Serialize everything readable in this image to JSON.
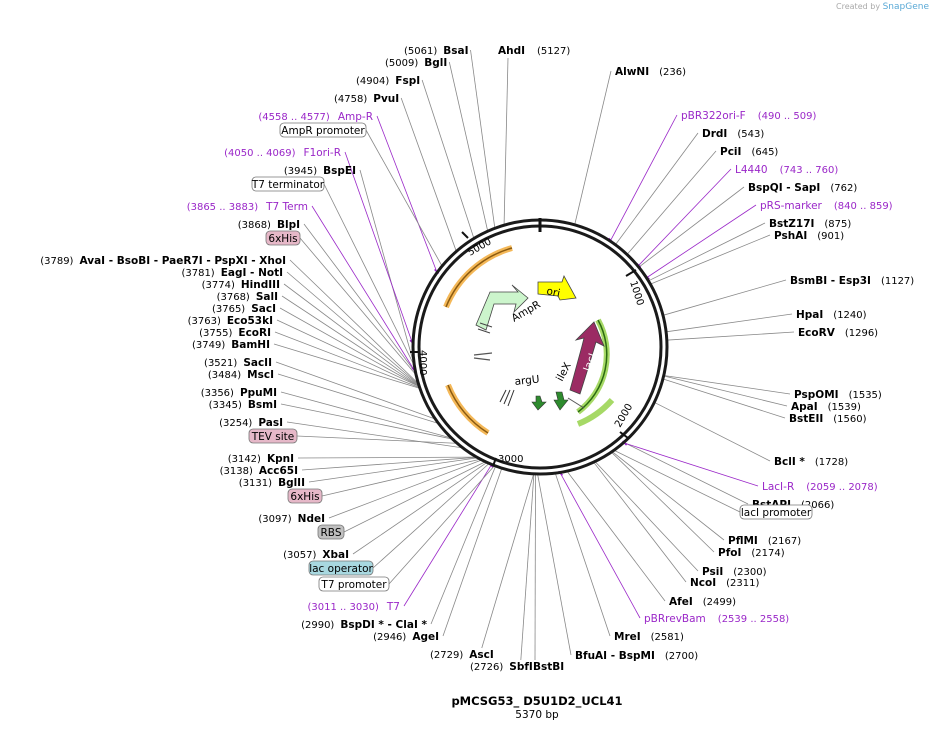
{
  "credit": {
    "prefix": "Created by",
    "brand": "SnapGene"
  },
  "plasmid": {
    "name": "pMCSG53_ D5U1D2_UCL41",
    "size": "5370 bp",
    "length": 5370
  },
  "ticks": [
    "1000",
    "2000",
    "3000",
    "4000",
    "5000"
  ],
  "features": {
    "ampr": "AmpR",
    "ori": "ori",
    "laci": "lacI",
    "ilex": "ileX",
    "argu": "argU"
  },
  "enzymes_right": [
    {
      "name": "AlwNI",
      "pos": "(236)"
    },
    {
      "name": "DrdI",
      "pos": "(543)"
    },
    {
      "name": "PciI",
      "pos": "(645)"
    },
    {
      "name": "BspQI  - SapI",
      "pos": "(762)"
    },
    {
      "name": "BstZ17I",
      "pos": "(875)"
    },
    {
      "name": "PshAI",
      "pos": "(901)"
    },
    {
      "name": "BsmBI  - Esp3I",
      "pos": "(1127)"
    },
    {
      "name": "HpaI",
      "pos": "(1240)"
    },
    {
      "name": "EcoRV",
      "pos": "(1296)"
    },
    {
      "name": "PspOMI",
      "pos": "(1535)"
    },
    {
      "name": "ApaI",
      "pos": "(1539)"
    },
    {
      "name": "BstEII",
      "pos": "(1560)"
    },
    {
      "name": "BclI *",
      "pos": "(1728)"
    },
    {
      "name": "BstAPI",
      "pos": "(2066)"
    },
    {
      "name": "PflMI",
      "pos": "(2167)"
    },
    {
      "name": "PfoI",
      "pos": "(2174)"
    },
    {
      "name": "PsiI",
      "pos": "(2300)"
    },
    {
      "name": "NcoI",
      "pos": "(2311)"
    },
    {
      "name": "AfeI",
      "pos": "(2499)"
    },
    {
      "name": "MreI",
      "pos": "(2581)"
    },
    {
      "name": "BfuAI  - BspMI",
      "pos": "(2700)"
    }
  ],
  "features_right": [
    {
      "name": "pBR322ori-F",
      "pos": "(490 .. 509)"
    },
    {
      "name": "L4440",
      "pos": "(743 .. 760)"
    },
    {
      "name": "pRS-marker",
      "pos": "(840 .. 859)"
    },
    {
      "name": "LacI-R",
      "pos": "(2059 .. 2078)"
    },
    {
      "name": "pBRrevBam",
      "pos": "(2539 .. 2558)"
    }
  ],
  "pills_right": [
    {
      "label": "lacI promoter"
    }
  ],
  "enzymes_top": [
    {
      "name": "BsaI",
      "pos": "(5061)"
    },
    {
      "name": "BglI",
      "pos": "(5009)"
    },
    {
      "name": "AhdI",
      "pos": "(5127)"
    },
    {
      "name": "FspI",
      "pos": "(4904)"
    },
    {
      "name": "PvuI",
      "pos": "(4758)"
    }
  ],
  "enzymes_left": [
    {
      "name": "BspEI",
      "pos": "(3945)"
    },
    {
      "name": "BlpI",
      "pos": "(3868)"
    },
    {
      "name": "AvaI  - BsoBI  - PaeR7I  - PspXI  - XhoI",
      "pos": "(3789)"
    },
    {
      "name": "EagI  - NotI",
      "pos": "(3781)"
    },
    {
      "name": "HindIII",
      "pos": "(3774)"
    },
    {
      "name": "SalI",
      "pos": "(3768)"
    },
    {
      "name": "SacI",
      "pos": "(3765)"
    },
    {
      "name": "Eco53kI",
      "pos": "(3763)"
    },
    {
      "name": "EcoRI",
      "pos": "(3755)"
    },
    {
      "name": "BamHI",
      "pos": "(3749)"
    },
    {
      "name": "SacII",
      "pos": "(3521)"
    },
    {
      "name": "MscI",
      "pos": "(3484)"
    },
    {
      "name": "PpuMI",
      "pos": "(3356)"
    },
    {
      "name": "BsmI",
      "pos": "(3345)"
    },
    {
      "name": "PasI",
      "pos": "(3254)"
    },
    {
      "name": "KpnI",
      "pos": "(3142)"
    },
    {
      "name": "Acc65I",
      "pos": "(3138)"
    },
    {
      "name": "BglII",
      "pos": "(3131)"
    },
    {
      "name": "NdeI",
      "pos": "(3097)"
    },
    {
      "name": "XbaI",
      "pos": "(3057)"
    },
    {
      "name": "BspDI *  - ClaI *",
      "pos": "(2990)"
    },
    {
      "name": "AgeI",
      "pos": "(2946)"
    }
  ],
  "features_left": [
    {
      "name": "Amp-R",
      "pos": "(4558 .. 4577)"
    },
    {
      "name": "F1ori-R",
      "pos": "(4050 .. 4069)"
    },
    {
      "name": "T7 Term",
      "pos": "(3865 .. 3883)"
    },
    {
      "name": "T7",
      "pos": "(3011 .. 3030)"
    }
  ],
  "pills_left": [
    {
      "label": "AmpR promoter"
    },
    {
      "label": "T7 terminator"
    },
    {
      "label": "6xHis"
    },
    {
      "label": "TEV site"
    },
    {
      "label": "6xHis"
    },
    {
      "label": "RBS"
    },
    {
      "label": "lac operator"
    },
    {
      "label": "T7 promoter"
    }
  ],
  "enzymes_bottom": [
    {
      "name": "AscI",
      "pos": "(2729)"
    },
    {
      "name": "SbfI",
      "pos": "(2726)"
    },
    {
      "name": "BstBI",
      "pos": "(2715)"
    }
  ],
  "colors": {
    "feature_text": "#9a27c8",
    "ampr_arrow": "#ccf5cc",
    "ori_arrow": "#ffff00",
    "laci_arrow": "#9b2b63",
    "orf_arc": "#f0a020",
    "green_arc": "#90d040",
    "pill_pink": "#e6b8c8",
    "pill_gray": "#c0c0c0",
    "pill_blue": "#a8d8e0"
  }
}
